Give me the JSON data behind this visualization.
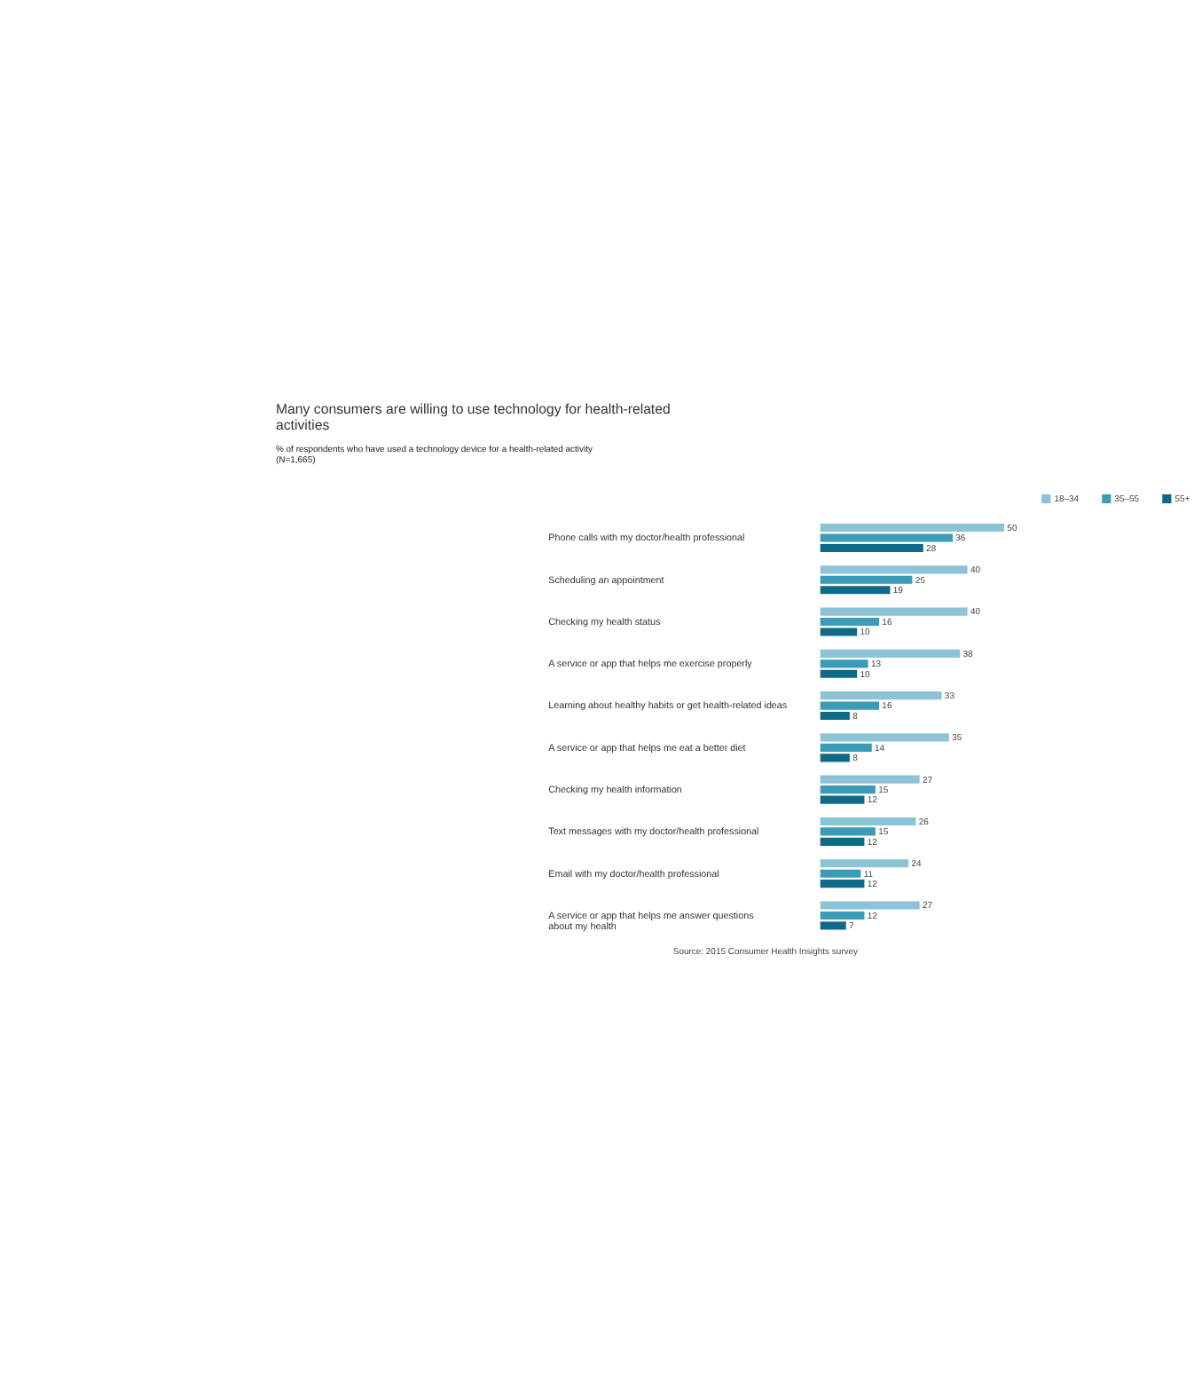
{
  "chart_data": {
    "type": "bar",
    "orientation": "horizontal",
    "title": "Many consumers are willing to use technology for health-related activities",
    "subtitle": "% of respondents who have used a technology device for a health-related activity\n(N=1,665)",
    "categories": [
      "Phone calls with my doctor/health professional",
      "Scheduling an appointment",
      "Checking my health status",
      "A service or app that helps me exercise properly",
      "Learning about healthy habits or get health-related ideas",
      "A service or app that helps me eat a better diet",
      "Checking my health information",
      "Text messages with my doctor/health professional",
      "Email with my doctor/health professional",
      "A service or app that helps me answer questions\nabout my  health"
    ],
    "series": [
      {
        "name": "18–34",
        "color": "#8cc3d6",
        "values": [
          50,
          40,
          40,
          38,
          33,
          35,
          27,
          26,
          24,
          27
        ]
      },
      {
        "name": "35–55",
        "color": "#3a9cb8",
        "values": [
          36,
          25,
          16,
          13,
          16,
          14,
          15,
          15,
          11,
          12
        ]
      },
      {
        "name": "55+",
        "color": "#0e6a87",
        "values": [
          28,
          19,
          10,
          10,
          8,
          8,
          12,
          12,
          12,
          7
        ]
      }
    ],
    "data_labels": true,
    "legend": "top right",
    "annotations": [
      "Source: 2015 Consumer Health Insights survey"
    ]
  }
}
